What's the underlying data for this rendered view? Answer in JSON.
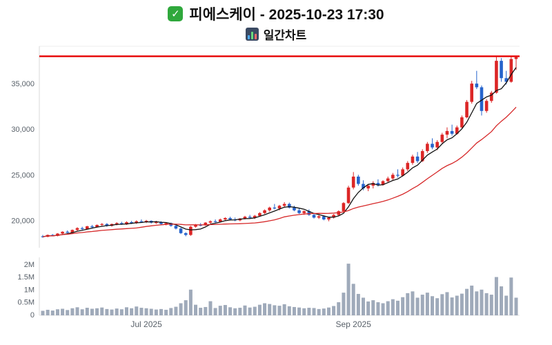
{
  "header": {
    "check_glyph": "✓",
    "title": "피에스케이 - 2025-10-23 17:30",
    "subtitle": "일간차트"
  },
  "chart_data": {
    "type": "candlestick",
    "title": "피에스케이 일간차트",
    "symbol": "피에스케이",
    "as_of": "2025-10-23 17:30",
    "x_ticks": [
      {
        "label": "Jul 2025",
        "index": 21
      },
      {
        "label": "Sep 2025",
        "index": 63
      }
    ],
    "price_axis": {
      "ticks": [
        {
          "value": 20000,
          "label": "20,000"
        },
        {
          "value": 25000,
          "label": "25,000"
        },
        {
          "value": 30000,
          "label": "30,000"
        },
        {
          "value": 35000,
          "label": "35,000"
        }
      ],
      "range": [
        17000,
        39100
      ]
    },
    "volume_axis": {
      "ticks": [
        {
          "value": 0,
          "label": "0"
        },
        {
          "value": 500000,
          "label": "0.5M"
        },
        {
          "value": 1000000,
          "label": "1M"
        },
        {
          "value": 1500000,
          "label": "1.5M"
        },
        {
          "value": 2000000,
          "label": "2M"
        }
      ],
      "range": [
        0,
        2300000
      ]
    },
    "limit_line": {
      "value": 38000,
      "color": "#e60000"
    },
    "moving_averages": [
      {
        "window": 5,
        "color": "#111111"
      },
      {
        "window": 20,
        "color": "#d62728"
      }
    ],
    "colors": {
      "up": "#dc2626",
      "down": "#2563cc",
      "volume": "#97a3b4"
    },
    "candles_format": [
      "date",
      "open",
      "high",
      "low",
      "close",
      "volume"
    ],
    "candles": [
      [
        "2025-06-02",
        18250,
        18400,
        18100,
        18200,
        180000
      ],
      [
        "2025-06-03",
        18200,
        18450,
        18150,
        18400,
        220000
      ],
      [
        "2025-06-04",
        18400,
        18500,
        18250,
        18300,
        190000
      ],
      [
        "2025-06-05",
        18300,
        18600,
        18250,
        18550,
        240000
      ],
      [
        "2025-06-09",
        18550,
        18800,
        18450,
        18750,
        260000
      ],
      [
        "2025-06-10",
        18750,
        18900,
        18600,
        18650,
        210000
      ],
      [
        "2025-06-11",
        18650,
        19000,
        18600,
        18950,
        280000
      ],
      [
        "2025-06-12",
        18950,
        19250,
        18850,
        19150,
        320000
      ],
      [
        "2025-06-13",
        19150,
        19300,
        18950,
        19050,
        240000
      ],
      [
        "2025-06-16",
        19050,
        19400,
        19000,
        19350,
        300000
      ],
      [
        "2025-06-17",
        19350,
        19500,
        19150,
        19250,
        260000
      ],
      [
        "2025-06-18",
        19250,
        19550,
        19200,
        19500,
        280000
      ],
      [
        "2025-06-19",
        19500,
        19700,
        19350,
        19600,
        310000
      ],
      [
        "2025-06-20",
        19600,
        19700,
        19300,
        19400,
        250000
      ],
      [
        "2025-06-23",
        19400,
        19650,
        19300,
        19600,
        230000
      ],
      [
        "2025-06-24",
        19600,
        19800,
        19450,
        19700,
        270000
      ],
      [
        "2025-06-25",
        19700,
        19850,
        19500,
        19550,
        240000
      ],
      [
        "2025-06-26",
        19550,
        19900,
        19500,
        19800,
        320000
      ],
      [
        "2025-06-27",
        19800,
        19950,
        19600,
        19700,
        280000
      ],
      [
        "2025-06-30",
        19700,
        20000,
        19600,
        19900,
        350000
      ],
      [
        "2025-07-01",
        19900,
        20100,
        19750,
        19850,
        300000
      ],
      [
        "2025-07-02",
        19850,
        20050,
        19700,
        19950,
        280000
      ],
      [
        "2025-07-03",
        19950,
        20000,
        19650,
        19750,
        260000
      ],
      [
        "2025-07-04",
        19750,
        19950,
        19600,
        19800,
        230000
      ],
      [
        "2025-07-07",
        19800,
        19900,
        19500,
        19600,
        250000
      ],
      [
        "2025-07-08",
        19600,
        19800,
        19450,
        19700,
        220000
      ],
      [
        "2025-07-09",
        19700,
        19750,
        19300,
        19400,
        290000
      ],
      [
        "2025-07-10",
        19400,
        19500,
        19000,
        19100,
        340000
      ],
      [
        "2025-07-11",
        19100,
        19200,
        18500,
        18600,
        480000
      ],
      [
        "2025-07-14",
        18600,
        18700,
        18250,
        18400,
        600000
      ],
      [
        "2025-07-15",
        18400,
        19400,
        18300,
        19300,
        1020000
      ],
      [
        "2025-07-16",
        19300,
        19600,
        19200,
        19500,
        420000
      ],
      [
        "2025-07-17",
        19500,
        19700,
        19350,
        19450,
        300000
      ],
      [
        "2025-07-18",
        19450,
        19800,
        19400,
        19750,
        330000
      ],
      [
        "2025-07-21",
        19750,
        20000,
        19650,
        19900,
        560000
      ],
      [
        "2025-07-22",
        19900,
        20100,
        19750,
        19850,
        290000
      ],
      [
        "2025-07-23",
        19850,
        20200,
        19800,
        20100,
        380000
      ],
      [
        "2025-07-24",
        20100,
        20350,
        19950,
        20250,
        410000
      ],
      [
        "2025-07-25",
        20250,
        20400,
        20000,
        20100,
        320000
      ],
      [
        "2025-07-28",
        20100,
        20300,
        19900,
        20000,
        280000
      ],
      [
        "2025-07-29",
        20000,
        20250,
        19900,
        20200,
        300000
      ],
      [
        "2025-07-30",
        20200,
        20500,
        20100,
        20400,
        390000
      ],
      [
        "2025-07-31",
        20400,
        20600,
        20200,
        20300,
        310000
      ],
      [
        "2025-08-01",
        20300,
        20600,
        20150,
        20500,
        340000
      ],
      [
        "2025-08-04",
        20500,
        20900,
        20400,
        20800,
        420000
      ],
      [
        "2025-08-05",
        20800,
        21200,
        20700,
        21100,
        480000
      ],
      [
        "2025-08-06",
        21100,
        21500,
        20950,
        21400,
        450000
      ],
      [
        "2025-08-07",
        21400,
        21800,
        21200,
        21300,
        400000
      ],
      [
        "2025-08-08",
        21300,
        21700,
        21100,
        21600,
        380000
      ],
      [
        "2025-08-11",
        21600,
        22000,
        21400,
        21800,
        440000
      ],
      [
        "2025-08-12",
        21800,
        21950,
        21300,
        21400,
        360000
      ],
      [
        "2025-08-13",
        21400,
        21600,
        21000,
        21100,
        330000
      ],
      [
        "2025-08-14",
        21100,
        21300,
        20700,
        20800,
        310000
      ],
      [
        "2025-08-18",
        20800,
        21100,
        20600,
        21000,
        280000
      ],
      [
        "2025-08-19",
        21000,
        21200,
        20500,
        20600,
        300000
      ],
      [
        "2025-08-20",
        20600,
        20800,
        20200,
        20300,
        290000
      ],
      [
        "2025-08-21",
        20300,
        20600,
        20150,
        20450,
        250000
      ],
      [
        "2025-08-22",
        20450,
        20550,
        20000,
        20100,
        270000
      ],
      [
        "2025-08-25",
        20100,
        20400,
        19900,
        20300,
        310000
      ],
      [
        "2025-08-26",
        20300,
        20700,
        20200,
        20600,
        370000
      ],
      [
        "2025-08-27",
        20600,
        21100,
        20500,
        21000,
        520000
      ],
      [
        "2025-08-28",
        21000,
        22000,
        20900,
        21900,
        900000
      ],
      [
        "2025-08-29",
        21900,
        23800,
        21800,
        23600,
        2050000
      ],
      [
        "2025-09-01",
        23600,
        25300,
        23400,
        24800,
        1250000
      ],
      [
        "2025-09-02",
        24800,
        25000,
        23800,
        24000,
        850000
      ],
      [
        "2025-09-03",
        24000,
        24400,
        23300,
        23500,
        700000
      ],
      [
        "2025-09-04",
        23500,
        24000,
        23200,
        23800,
        550000
      ],
      [
        "2025-09-05",
        23800,
        24300,
        23500,
        24100,
        600000
      ],
      [
        "2025-09-08",
        24100,
        24500,
        23700,
        23900,
        520000
      ],
      [
        "2025-09-09",
        23900,
        24400,
        23800,
        24300,
        480000
      ],
      [
        "2025-09-10",
        24300,
        24800,
        24100,
        24600,
        560000
      ],
      [
        "2025-09-11",
        24600,
        25200,
        24400,
        25000,
        640000
      ],
      [
        "2025-09-12",
        25000,
        25600,
        24700,
        24900,
        580000
      ],
      [
        "2025-09-15",
        24900,
        25800,
        24800,
        25600,
        720000
      ],
      [
        "2025-09-16",
        25600,
        26500,
        25400,
        26300,
        880000
      ],
      [
        "2025-09-17",
        26300,
        27200,
        26100,
        27000,
        950000
      ],
      [
        "2025-09-18",
        27000,
        27500,
        26300,
        26500,
        700000
      ],
      [
        "2025-09-19",
        26500,
        27800,
        26400,
        27600,
        820000
      ],
      [
        "2025-09-22",
        27600,
        28600,
        27400,
        28400,
        900000
      ],
      [
        "2025-09-23",
        28400,
        29000,
        27800,
        28000,
        760000
      ],
      [
        "2025-09-24",
        28000,
        28800,
        27700,
        28600,
        680000
      ],
      [
        "2025-09-25",
        28600,
        29600,
        28400,
        29400,
        840000
      ],
      [
        "2025-09-26",
        29400,
        30200,
        29000,
        29800,
        920000
      ],
      [
        "2025-09-29",
        29800,
        30500,
        29300,
        29500,
        710000
      ],
      [
        "2025-09-30",
        29500,
        30400,
        29400,
        30200,
        780000
      ],
      [
        "2025-10-01",
        30200,
        31500,
        30100,
        31300,
        860000
      ],
      [
        "2025-10-02",
        31300,
        33200,
        31200,
        33000,
        1050000
      ],
      [
        "2025-10-10",
        33000,
        35300,
        32800,
        35000,
        1180000
      ],
      [
        "2025-10-13",
        35000,
        36400,
        34400,
        34600,
        950000
      ],
      [
        "2025-10-14",
        34600,
        34800,
        31500,
        32000,
        1020000
      ],
      [
        "2025-10-15",
        32000,
        33300,
        31800,
        33100,
        880000
      ],
      [
        "2025-10-16",
        33100,
        34200,
        32900,
        34000,
        820000
      ],
      [
        "2025-10-17",
        34000,
        38000,
        33900,
        37500,
        1520000
      ],
      [
        "2025-10-20",
        37500,
        37800,
        35200,
        35600,
        1150000
      ],
      [
        "2025-10-21",
        35600,
        36400,
        34900,
        35200,
        780000
      ],
      [
        "2025-10-22",
        35200,
        38000,
        35100,
        37700,
        1500000
      ],
      [
        "2025-10-23",
        37700,
        38000,
        36500,
        37900,
        700000
      ]
    ]
  }
}
